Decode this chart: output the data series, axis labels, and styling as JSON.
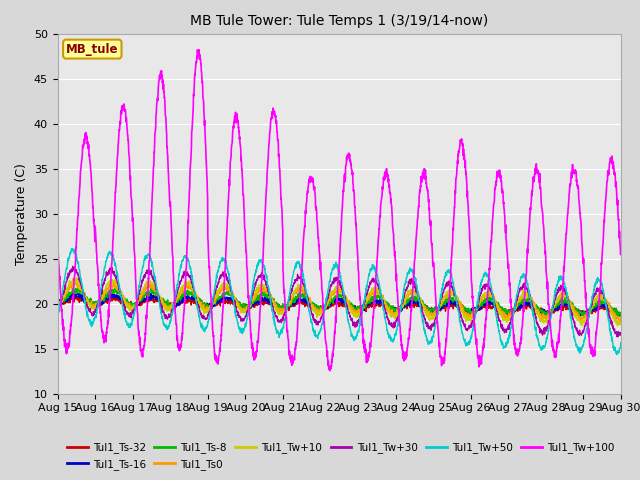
{
  "title": "MB Tule Tower: Tule Temps 1 (3/19/14-now)",
  "ylabel": "Temperature (C)",
  "ylim": [
    10,
    50
  ],
  "yticks": [
    10,
    15,
    20,
    25,
    30,
    35,
    40,
    45,
    50
  ],
  "x_tick_labels": [
    "Aug 15",
    "Aug 16",
    "Aug 17",
    "Aug 18",
    "Aug 19",
    "Aug 20",
    "Aug 21",
    "Aug 22",
    "Aug 23",
    "Aug 24",
    "Aug 25",
    "Aug 26",
    "Aug 27",
    "Aug 28",
    "Aug 29",
    "Aug 30"
  ],
  "fig_bg_color": "#d8d8d8",
  "plot_bg_color": "#e8e8e8",
  "series_colors": {
    "Tul1_Ts-32": "#cc0000",
    "Tul1_Ts-16": "#0000cc",
    "Tul1_Ts-8": "#00bb00",
    "Tul1_Ts0": "#ff9900",
    "Tul1_Tw+10": "#cccc00",
    "Tul1_Tw+30": "#aa00aa",
    "Tul1_Tw+50": "#00cccc",
    "Tul1_Tw+100": "#ff00ff"
  },
  "spike_peaks": [
    38.5,
    42.0,
    45.5,
    48.0,
    41.0,
    41.5,
    34.0,
    36.5,
    34.5,
    34.5,
    38.0,
    34.5,
    35.0,
    35.0,
    36.0
  ],
  "spike_troughs": [
    15.0,
    16.0,
    14.5,
    15.0,
    13.5,
    14.0,
    13.5,
    13.0,
    14.0,
    14.0,
    13.5,
    13.5,
    14.5,
    14.5,
    14.5
  ],
  "n_days": 15
}
